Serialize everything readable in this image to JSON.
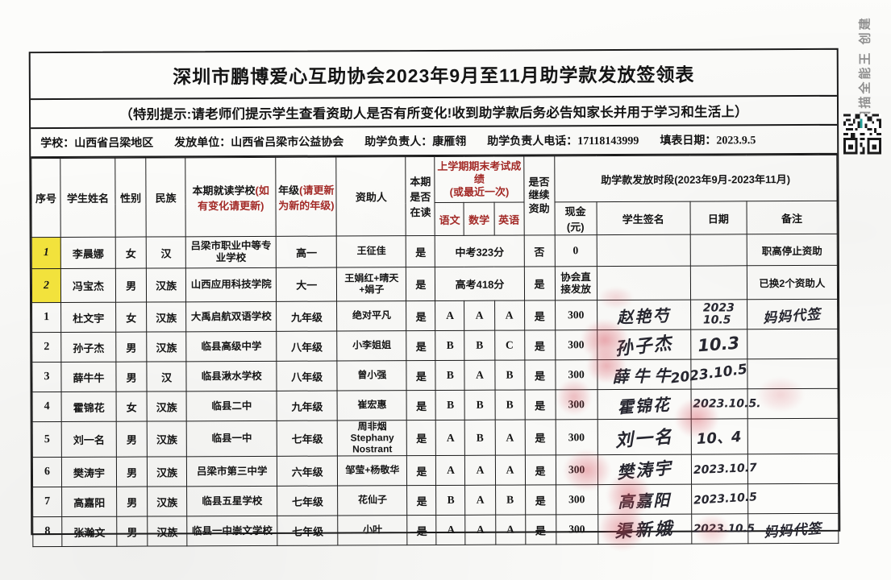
{
  "page": {
    "title": "深圳市鹏博爱心互助协会2023年9月至11月助学款发放签领表",
    "notice": "（特别提示:请老师们提示学生查看资助人是否有所变化!收到助学款后务必告知家长并用于学习和生活上）",
    "info": {
      "school_label": "学校：",
      "school_value": "山西省吕梁地区",
      "issuer_label": "发放单位：",
      "issuer_value": "山西省吕梁市公益协会",
      "manager_label": "助学负责人：",
      "manager_value": "康雁翎",
      "phone_label": "助学负责人电话：",
      "phone_value": "17118143999",
      "date_label": "填表日期：",
      "date_value": "2023.9.5"
    },
    "watermark": "扫描全能王 创建",
    "colors": {
      "highlight": "#f2e23c",
      "header_red": "#a32b28",
      "fingerprint": "#d63e4d"
    }
  },
  "table": {
    "headers": {
      "no": "序号",
      "name": "学生姓名",
      "gender": "性别",
      "ethnic": "民族",
      "school_black": "本期就读学校",
      "school_red": "(如有变化请更新)",
      "grade_black": "年级",
      "grade_red": "(请更新为新的年级)",
      "sponsor": "资助人",
      "enrolled": "本期是否在读",
      "exam_group": "上学期期末考试成绩\n(或最近一次)",
      "chinese": "语文",
      "math": "数学",
      "english": "英语",
      "continue": "是否\n继续\n资助",
      "period_group": "助学款发放时段(2023年9月-2023年11月)",
      "cash": "现金(元)",
      "signature": "学生签名",
      "date": "日期",
      "remark": "备注"
    },
    "rows": [
      {
        "no": "1",
        "hl": true,
        "name": "李晨娜",
        "gender": "女",
        "ethnic": "汉",
        "school": "吕梁市职业中等专业学校",
        "grade": "高一",
        "sponsor": "王征佳",
        "enrolled": "是",
        "score_merged": "中考323分",
        "scores": null,
        "cont": "否",
        "cash": "0",
        "sig": "",
        "date": "",
        "remark": "职高停止资助",
        "remark_hand": false
      },
      {
        "no": "2",
        "hl": true,
        "name": "冯宝杰",
        "gender": "男",
        "ethnic": "汉族",
        "school": "山西应用科技学院",
        "grade": "大一",
        "sponsor": "王娟红+晴天+娟子",
        "enrolled": "是",
        "score_merged": "高考418分",
        "scores": null,
        "cont": "是",
        "cash": "协会直接发放",
        "sig": "",
        "date": "",
        "remark": "已换2个资助人",
        "remark_hand": false
      },
      {
        "no": "1",
        "hl": false,
        "name": "杜文宇",
        "gender": "女",
        "ethnic": "汉族",
        "school": "大禹启航双语学校",
        "grade": "九年级",
        "sponsor": "绝对平凡",
        "enrolled": "是",
        "score_merged": null,
        "scores": [
          "A",
          "A",
          "A"
        ],
        "cont": "是",
        "cash": "300",
        "sig": "赵艳芍",
        "date": "2023\n10.5",
        "remark": "妈妈代签",
        "remark_hand": true
      },
      {
        "no": "2",
        "hl": false,
        "name": "孙子杰",
        "gender": "男",
        "ethnic": "汉族",
        "school": "临县高级中学",
        "grade": "八年级",
        "sponsor": "小李姐姐",
        "enrolled": "是",
        "score_merged": null,
        "scores": [
          "B",
          "B",
          "C"
        ],
        "cont": "是",
        "cash": "300",
        "sig": "孙子杰",
        "date": "10.3",
        "remark": "",
        "remark_hand": false
      },
      {
        "no": "3",
        "hl": false,
        "name": "薛牛牛",
        "gender": "男",
        "ethnic": "汉",
        "school": "临县湫水学校",
        "grade": "八年级",
        "sponsor": "曾小强",
        "enrolled": "是",
        "score_merged": null,
        "scores": [
          "B",
          "A",
          "B"
        ],
        "cont": "是",
        "cash": "300",
        "sig": "薛牛牛",
        "date": "2023.10.5",
        "remark": "",
        "remark_hand": false
      },
      {
        "no": "4",
        "hl": false,
        "name": "霍锦花",
        "gender": "女",
        "ethnic": "汉族",
        "school": "临县二中",
        "grade": "九年级",
        "sponsor": "崔宏惠",
        "enrolled": "是",
        "score_merged": null,
        "scores": [
          "B",
          "B",
          "B"
        ],
        "cont": "是",
        "cash": "300",
        "sig": "霍锦花",
        "date": "2023.10.5.",
        "remark": "",
        "remark_hand": false
      },
      {
        "no": "5",
        "hl": false,
        "name": "刘一名",
        "gender": "男",
        "ethnic": "汉族",
        "school": "临县一中",
        "grade": "七年级",
        "sponsor": "周非烟Stephany Nostrant",
        "enrolled": "是",
        "score_merged": null,
        "scores": [
          "A",
          "B",
          "A"
        ],
        "cont": "是",
        "cash": "300",
        "sig": "刘一名",
        "date": "10、4",
        "remark": "",
        "remark_hand": false
      },
      {
        "no": "6",
        "hl": false,
        "name": "樊涛宇",
        "gender": "男",
        "ethnic": "汉族",
        "school": "吕梁市第三中学",
        "grade": "六年级",
        "sponsor": "邹莹+杨敬华",
        "enrolled": "是",
        "score_merged": null,
        "scores": [
          "A",
          "A",
          "A"
        ],
        "cont": "是",
        "cash": "300",
        "sig": "樊涛宇",
        "date": "2023.10.7",
        "remark": "",
        "remark_hand": false
      },
      {
        "no": "7",
        "hl": false,
        "name": "高嘉阳",
        "gender": "男",
        "ethnic": "汉族",
        "school": "临县五星学校",
        "grade": "七年级",
        "sponsor": "花仙子",
        "enrolled": "是",
        "score_merged": null,
        "scores": [
          "B",
          "A",
          "B"
        ],
        "cont": "是",
        "cash": "300",
        "sig": "高嘉阳",
        "date": "2023.10.5",
        "remark": "",
        "remark_hand": false
      },
      {
        "no": "8",
        "hl": false,
        "name": "张瀚文",
        "gender": "男",
        "ethnic": "汉族",
        "school": "临县一中崇文学校",
        "grade": "七年级",
        "sponsor": "小叶",
        "enrolled": "是",
        "score_merged": null,
        "scores": [
          "A",
          "A",
          "A"
        ],
        "cont": "是",
        "cash": "300",
        "sig": "渠新娥",
        "date": "2023.10.5",
        "remark": "妈妈代签",
        "remark_hand": true
      }
    ]
  }
}
